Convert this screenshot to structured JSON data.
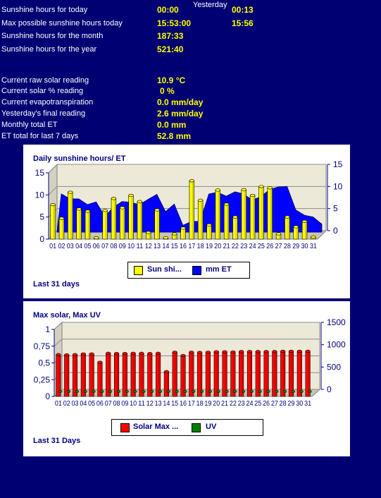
{
  "stats": {
    "yesterday_header": "Yesterday",
    "rows": [
      {
        "label": "Sunshine hours for today",
        "today": "00:00",
        "yesterday": "00:13"
      },
      {
        "label": "Max possible sunshine hours today",
        "today": "15:53:00",
        "yesterday": "15:56"
      },
      {
        "label": "Sunshine hours for the month",
        "today": "187:33",
        "yesterday": ""
      },
      {
        "label": "Sunshine hours for the year",
        "today": "521:40",
        "yesterday": ""
      }
    ],
    "solar_rows": [
      {
        "label": "Current raw solar reading",
        "value": "10.9 °C"
      },
      {
        "label": "Current solar % reading",
        "value": "0 %"
      },
      {
        "label": "Current evapotranspiration",
        "value": "0.0 mm/day"
      },
      {
        "label": "Yesterday's final reading",
        "value": "2.6 mm/day"
      },
      {
        "label": "Monthly total ET",
        "value": "0.0 mm"
      },
      {
        "label": "ET total for last 7 days",
        "value": "52.8 mm"
      }
    ]
  },
  "chart_data": [
    {
      "type": "bar",
      "title": "Daily sunshine hours/ ET",
      "footer": "Last 31 days",
      "categories": [
        "01",
        "02",
        "03",
        "04",
        "05",
        "06",
        "07",
        "08",
        "09",
        "10",
        "11",
        "12",
        "13",
        "14",
        "15",
        "16",
        "17",
        "18",
        "19",
        "20",
        "21",
        "22",
        "23",
        "24",
        "25",
        "26",
        "27",
        "28",
        "29",
        "30",
        "31"
      ],
      "y_left_ticks": [
        "15",
        "10",
        "5",
        "0"
      ],
      "y_right_ticks": [
        "15",
        "10",
        "5",
        "0"
      ],
      "ylim_left": [
        0,
        15
      ],
      "ylim_right": [
        0,
        15
      ],
      "series": [
        {
          "name": "Sun shi...",
          "type": "bar",
          "axis": "left",
          "color": "#ffff00",
          "values": [
            7.8,
            4.7,
            10.6,
            6.8,
            6.3,
            0.3,
            6.5,
            9.2,
            7.1,
            9.9,
            8.5,
            1.5,
            6.6,
            0.3,
            1.2,
            2.5,
            13.2,
            8.8,
            3.2,
            11.1,
            7.9,
            5.0,
            11.2,
            9.9,
            11.9,
            11.6,
            1.2,
            5.0,
            2.8,
            4.0,
            0.5
          ]
        },
        {
          "name": "mm ET",
          "type": "area",
          "axis": "right",
          "color": "#0000ff",
          "values": [
            8.6,
            7.5,
            7.5,
            6.2,
            6.8,
            3.5,
            5.6,
            6.9,
            6.7,
            6.2,
            7.4,
            8.5,
            4.6,
            6.3,
            1.5,
            2.4,
            2.4,
            8.6,
            9.0,
            8.1,
            9.1,
            8.6,
            7.2,
            8.0,
            9.6,
            10.2,
            10.3,
            5.0,
            3.8,
            3.4,
            1.8
          ]
        }
      ]
    },
    {
      "type": "bar",
      "title": "Max solar, Max UV",
      "footer": "Last 31 Days",
      "categories": [
        "01",
        "02",
        "03",
        "04",
        "05",
        "06",
        "07",
        "08",
        "09",
        "10",
        "11",
        "12",
        "13",
        "14",
        "15",
        "16",
        "17",
        "18",
        "19",
        "20",
        "21",
        "22",
        "23",
        "24",
        "25",
        "26",
        "27",
        "28",
        "29",
        "30",
        "31"
      ],
      "y_left_ticks": [
        "1",
        "0,75",
        "0,5",
        "0,25",
        "0"
      ],
      "y_right_ticks": [
        "1500",
        "1000",
        "500",
        "0"
      ],
      "ylim_left": [
        0,
        1
      ],
      "ylim_right": [
        0,
        1500
      ],
      "series": [
        {
          "name": "Solar Max ...",
          "type": "bar",
          "axis": "right",
          "color": "#ff0000",
          "values": [
            935,
            930,
            935,
            950,
            950,
            765,
            965,
            960,
            960,
            965,
            965,
            960,
            965,
            555,
            990,
            915,
            990,
            985,
            990,
            1000,
            1000,
            995,
            1005,
            1005,
            1005,
            1005,
            1005,
            1010,
            1010,
            1010,
            1010
          ]
        },
        {
          "name": "UV",
          "type": "bar",
          "axis": "left",
          "color": "#008000",
          "values": [
            0,
            0,
            0,
            0,
            0,
            0,
            0,
            0,
            0,
            0,
            0,
            0,
            0,
            0,
            0,
            0,
            0,
            0,
            0,
            0,
            0,
            0,
            0,
            0,
            0,
            0,
            0,
            0,
            0,
            0,
            0
          ]
        }
      ]
    }
  ]
}
